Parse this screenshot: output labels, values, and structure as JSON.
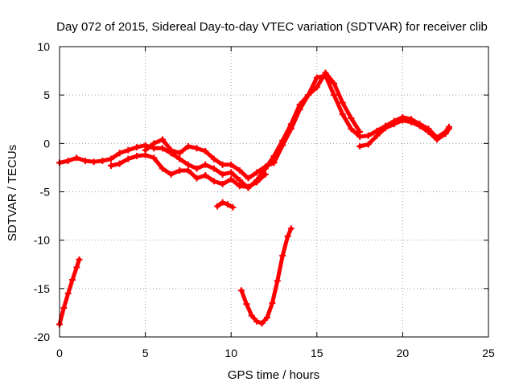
{
  "chart_data": {
    "type": "scatter",
    "title": "Day 072 of 2015, Sidereal Day-to-day VTEC variation (SDTVAR) for receiver clib",
    "xlabel": "GPS time / hours",
    "ylabel": "SDTVAR / TECUs",
    "xlim": [
      0,
      25
    ],
    "ylim": [
      -20,
      10
    ],
    "xticks": [
      0,
      5,
      10,
      15,
      20,
      25
    ],
    "yticks": [
      -20,
      -15,
      -10,
      -5,
      0,
      5,
      10
    ],
    "grid": true,
    "legend": "none",
    "series": [
      {
        "name": "main-track",
        "color": "#ff0000",
        "x": [
          0.0,
          0.5,
          1.0,
          1.5,
          2.0,
          2.5,
          3.0,
          3.5,
          4.0,
          4.5,
          5.0,
          5.5,
          6.0,
          6.5,
          7.0,
          7.5,
          8.0,
          8.5,
          9.0,
          9.5,
          10.0,
          10.5,
          11.0,
          11.5,
          12.0,
          12.5,
          13.0,
          13.5,
          14.0,
          14.5,
          15.0,
          15.5,
          16.0,
          16.5,
          17.0,
          17.5,
          18.0,
          18.5,
          19.0,
          19.5,
          20.0,
          20.5,
          21.0,
          21.5,
          22.0,
          22.5,
          22.7
        ],
        "y": [
          -2.0,
          -1.8,
          -1.5,
          -1.8,
          -1.9,
          -1.8,
          -1.6,
          -1.0,
          -0.7,
          -0.4,
          -0.2,
          -0.5,
          -0.5,
          -1.0,
          -1.6,
          -2.2,
          -2.6,
          -2.2,
          -2.6,
          -3.2,
          -3.0,
          -3.8,
          -4.6,
          -3.8,
          -2.6,
          -1.3,
          0.3,
          2.0,
          4.0,
          5.0,
          6.8,
          7.0,
          5.0,
          3.0,
          1.5,
          0.7,
          0.8,
          1.3,
          1.8,
          2.3,
          2.7,
          2.5,
          2.0,
          1.5,
          0.6,
          1.2,
          1.7
        ]
      },
      {
        "name": "upper-band",
        "color": "#ff0000",
        "x": [
          5.0,
          5.5,
          6.0,
          6.5,
          7.0,
          7.5,
          8.0,
          8.5,
          9.0,
          9.5,
          10.0,
          10.5,
          11.0,
          11.5,
          12.0,
          12.5,
          13.0,
          13.5,
          14.0,
          14.5,
          15.0,
          15.5,
          16.0,
          16.5,
          17.0,
          17.5
        ],
        "y": [
          -0.7,
          0.0,
          0.4,
          -0.7,
          -1.0,
          -0.3,
          -0.5,
          -0.8,
          -1.6,
          -2.2,
          -2.2,
          -2.8,
          -3.6,
          -3.0,
          -2.4,
          -2.0,
          -0.2,
          1.5,
          3.5,
          5.0,
          5.8,
          7.3,
          6.2,
          4.2,
          2.6,
          1.2
        ]
      },
      {
        "name": "lower-band",
        "color": "#ff0000",
        "x": [
          3.0,
          3.5,
          4.0,
          4.5,
          5.0,
          5.5,
          6.0,
          6.5,
          7.0,
          7.5,
          8.0,
          8.5,
          9.0,
          9.5,
          10.0,
          10.5,
          11.0,
          11.5,
          12.0
        ],
        "y": [
          -2.3,
          -2.1,
          -1.6,
          -1.3,
          -1.2,
          -1.5,
          -2.6,
          -3.2,
          -2.8,
          -2.8,
          -3.6,
          -3.3,
          -3.9,
          -4.2,
          -3.7,
          -4.4,
          -4.5,
          -4.0,
          -3.2
        ]
      },
      {
        "name": "late-track",
        "color": "#ff0000",
        "x": [
          17.5,
          18.0,
          18.5,
          19.0,
          19.5,
          20.0,
          20.5,
          21.0,
          21.5,
          22.0,
          22.5,
          22.7
        ],
        "y": [
          -0.3,
          -0.1,
          0.8,
          1.6,
          2.0,
          2.4,
          2.2,
          1.8,
          1.2,
          0.4,
          1.0,
          1.5
        ]
      },
      {
        "name": "isolated-segment",
        "color": "#ff0000",
        "x": [
          9.2,
          9.5,
          9.8,
          10.1
        ],
        "y": [
          -6.5,
          -6.1,
          -6.3,
          -6.6
        ]
      },
      {
        "name": "early-drop-arc",
        "color": "#ff0000",
        "x": [
          0.0,
          0.25,
          0.5,
          0.75,
          1.0,
          1.15
        ],
        "y": [
          -18.7,
          -17.0,
          -15.5,
          -14.1,
          -12.8,
          -12.0
        ]
      },
      {
        "name": "midday-dip-arc",
        "color": "#ff0000",
        "x": [
          10.6,
          10.9,
          11.2,
          11.5,
          11.8,
          12.1,
          12.4,
          12.7,
          13.0,
          13.3,
          13.5
        ],
        "y": [
          -15.2,
          -16.6,
          -17.8,
          -18.4,
          -18.6,
          -18.0,
          -16.5,
          -14.2,
          -11.6,
          -9.6,
          -8.8
        ]
      }
    ]
  }
}
